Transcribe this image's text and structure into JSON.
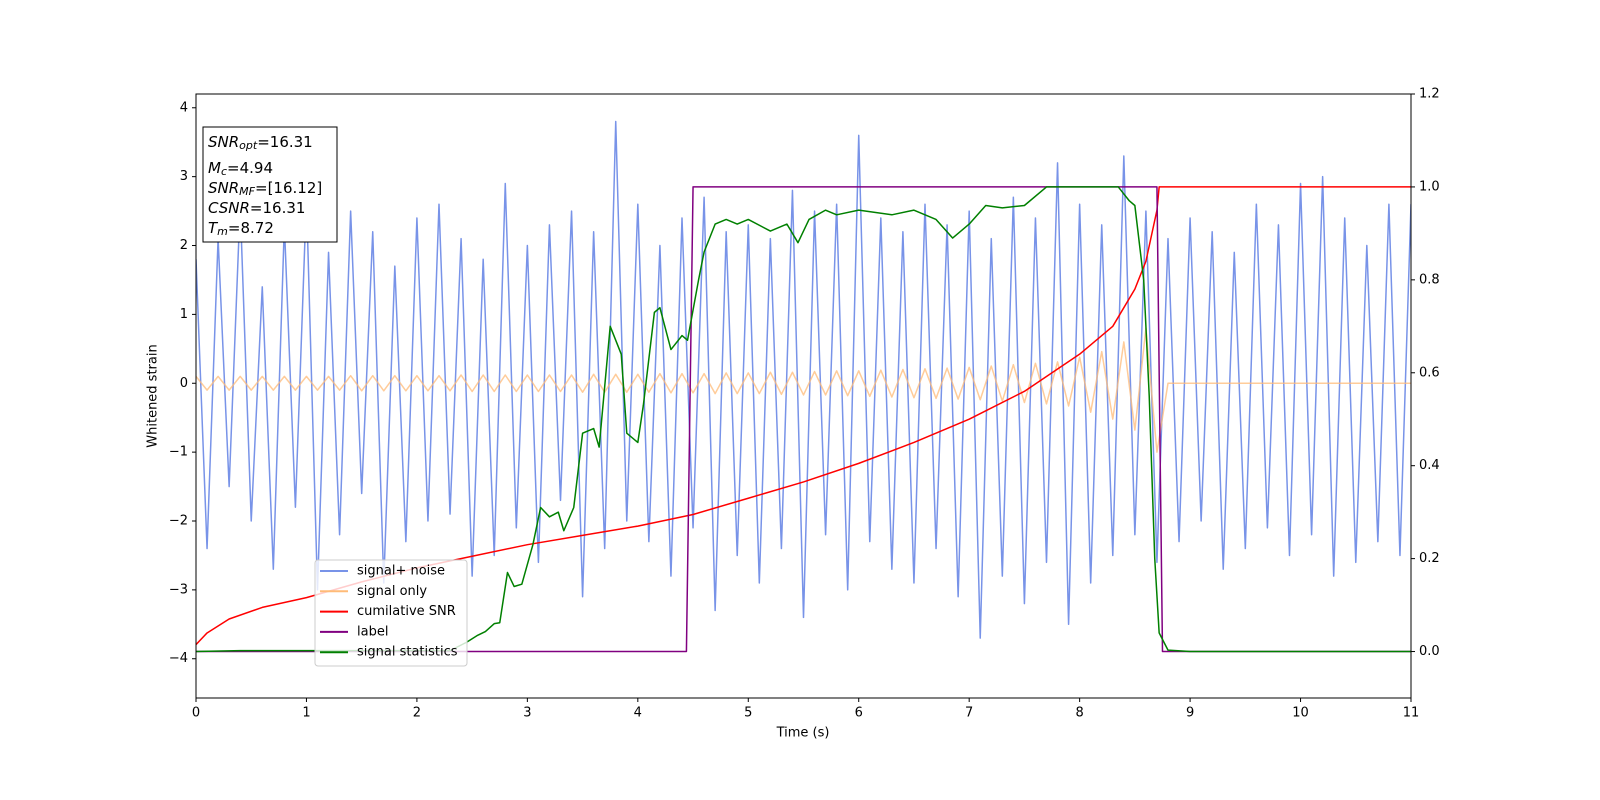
{
  "chart_data": {
    "type": "line",
    "xlabel": "Time (s)",
    "ylabel": "Whitened strain",
    "xlim": [
      0,
      11
    ],
    "xticks": [
      0,
      1,
      2,
      3,
      4,
      5,
      6,
      7,
      8,
      9,
      10,
      11
    ],
    "ylim": [
      -4.57,
      4.2
    ],
    "yticks": [
      {
        "value": -4,
        "label": "−4"
      },
      {
        "value": -3,
        "label": "−3"
      },
      {
        "value": -2,
        "label": "−2"
      },
      {
        "value": -1,
        "label": "−1"
      },
      0,
      1,
      2,
      3,
      4
    ],
    "y2lim": [
      -0.1,
      1.2
    ],
    "y2ticks": [
      {
        "value": 0,
        "label": "0.0"
      },
      0.2,
      0.4,
      0.6,
      0.8,
      {
        "value": 1,
        "label": "1.0"
      },
      1.2
    ],
    "legend": "lower left",
    "annotations": [
      {
        "text": "SNR",
        "sub": "opt",
        "suffix": "=16.31"
      },
      {
        "text": "M",
        "sub": "c",
        "suffix": "=4.94"
      },
      {
        "text": "SNR",
        "sub": "MF",
        "suffix": "=[16.12]"
      },
      {
        "text": "CSNR",
        "suffix": "=16.31"
      },
      {
        "text": "T",
        "sub": "m",
        "suffix": "=8.72"
      }
    ],
    "x": [
      0,
      0.1,
      0.2,
      0.3,
      0.4,
      0.5,
      0.6,
      0.7,
      0.8,
      0.9,
      1,
      1.1,
      1.2,
      1.3,
      1.4,
      1.5,
      1.6,
      1.7,
      1.8,
      1.9,
      2,
      2.1,
      2.2,
      2.3,
      2.4,
      2.5,
      2.6,
      2.7,
      2.8,
      2.9,
      3,
      3.1,
      3.2,
      3.3,
      3.4,
      3.5,
      3.6,
      3.7,
      3.8,
      3.9,
      4,
      4.1,
      4.2,
      4.3,
      4.4,
      4.5,
      4.6,
      4.7,
      4.8,
      4.9,
      5,
      5.1,
      5.2,
      5.3,
      5.4,
      5.5,
      5.6,
      5.7,
      5.8,
      5.9,
      6,
      6.1,
      6.2,
      6.3,
      6.4,
      6.5,
      6.6,
      6.7,
      6.8,
      6.9,
      7,
      7.1,
      7.2,
      7.3,
      7.4,
      7.5,
      7.6,
      7.7,
      7.8,
      7.9,
      8,
      8.1,
      8.2,
      8.3,
      8.4,
      8.5,
      8.6,
      8.7,
      8.8,
      8.9,
      9,
      9.1,
      9.2,
      9.3,
      9.4,
      9.5,
      9.6,
      9.7,
      9.8,
      9.9,
      10,
      10.1,
      10.2,
      10.3,
      10.4,
      10.5,
      10.6,
      10.7,
      10.8,
      10.9,
      11
    ],
    "series": [
      {
        "name": "signal+ noise",
        "color": "#7893e8",
        "values": [
          1.8,
          -2.4,
          2.1,
          -1.5,
          2.6,
          -2.0,
          1.4,
          -2.7,
          2.3,
          -1.8,
          2.7,
          -3.0,
          1.9,
          -2.2,
          2.5,
          -1.6,
          2.2,
          -2.9,
          1.7,
          -2.3,
          2.4,
          -2.0,
          2.6,
          -1.9,
          2.1,
          -2.8,
          1.8,
          -2.5,
          2.9,
          -2.1,
          2.0,
          -2.6,
          2.3,
          -1.7,
          2.5,
          -3.1,
          2.2,
          -2.4,
          3.8,
          -2.0,
          2.6,
          -2.3,
          2.0,
          -2.8,
          2.4,
          -2.1,
          2.7,
          -3.3,
          2.2,
          -2.5,
          2.3,
          -2.9,
          2.1,
          -2.4,
          2.8,
          -3.4,
          2.5,
          -2.2,
          2.6,
          -3.0,
          3.6,
          -2.3,
          2.4,
          -2.7,
          2.2,
          -2.9,
          2.6,
          -2.4,
          2.3,
          -3.1,
          2.5,
          -3.7,
          2.1,
          -2.8,
          2.7,
          -3.2,
          2.4,
          -2.6,
          3.2,
          -3.5,
          2.6,
          -2.9,
          2.3,
          -2.5,
          3.3,
          -2.2,
          2.5,
          -2.6,
          2.1,
          -2.3,
          2.4,
          -2.0,
          2.2,
          -2.7,
          1.9,
          -2.4,
          2.6,
          -2.1,
          2.3,
          -2.5,
          2.9,
          -2.2,
          3.0,
          -2.8,
          2.4,
          -2.6,
          2.0,
          -2.3,
          2.6,
          -2.5,
          2.6
        ]
      },
      {
        "name": "signal only",
        "color": "#ffbb78",
        "values": [
          0.1,
          -0.1,
          0.1,
          -0.1,
          0.1,
          -0.1,
          0.1,
          -0.1,
          0.1,
          -0.1,
          0.1,
          -0.1,
          0.1,
          -0.1,
          0.11,
          -0.11,
          0.11,
          -0.11,
          0.11,
          -0.11,
          0.11,
          -0.11,
          0.11,
          -0.11,
          0.12,
          -0.12,
          0.12,
          -0.12,
          0.12,
          -0.12,
          0.12,
          -0.12,
          0.12,
          -0.12,
          0.12,
          -0.13,
          0.13,
          -0.13,
          0.13,
          -0.13,
          0.13,
          -0.13,
          0.14,
          -0.14,
          0.14,
          -0.14,
          0.14,
          -0.15,
          0.15,
          -0.15,
          0.15,
          -0.15,
          0.16,
          -0.16,
          0.16,
          -0.17,
          0.17,
          -0.17,
          0.18,
          -0.18,
          0.18,
          -0.19,
          0.19,
          -0.2,
          0.2,
          -0.21,
          0.21,
          -0.22,
          0.22,
          -0.23,
          0.23,
          -0.24,
          0.25,
          -0.26,
          0.27,
          -0.28,
          0.29,
          -0.3,
          0.31,
          -0.33,
          0.38,
          -0.42,
          0.46,
          -0.52,
          0.6,
          -0.68,
          0.8,
          -1.0,
          0,
          0,
          0,
          0,
          0,
          0,
          0,
          0,
          0,
          0,
          0,
          0,
          0,
          0,
          0,
          0,
          0,
          0,
          0,
          0,
          0,
          0,
          0
        ]
      },
      {
        "name": "cumilative SNR",
        "color": "#ff0000",
        "axis": "y2",
        "x": [
          0,
          0.1,
          0.3,
          0.6,
          1,
          1.5,
          2,
          2.5,
          3,
          3.5,
          4,
          4.5,
          5,
          5.5,
          6,
          6.5,
          7,
          7.5,
          8,
          8.3,
          8.5,
          8.6,
          8.7,
          8.72,
          11
        ],
        "values": [
          0.015,
          0.04,
          0.07,
          0.095,
          0.116,
          0.15,
          0.18,
          0.205,
          0.23,
          0.25,
          0.27,
          0.295,
          0.33,
          0.365,
          0.405,
          0.45,
          0.5,
          0.56,
          0.64,
          0.7,
          0.78,
          0.84,
          0.95,
          1.0,
          1.0
        ]
      },
      {
        "name": "label",
        "color": "#800080",
        "axis": "y2",
        "x": [
          0,
          4.44,
          4.5,
          8.7,
          8.75,
          11
        ],
        "values": [
          0,
          0,
          1,
          1,
          0,
          0
        ]
      },
      {
        "name": "signal statistics",
        "color": "#008000",
        "axis": "y2",
        "x": [
          0,
          0.4,
          2.3,
          2.45,
          2.55,
          2.62,
          2.7,
          2.75,
          2.82,
          2.88,
          2.95,
          3.05,
          3.12,
          3.2,
          3.28,
          3.33,
          3.42,
          3.5,
          3.6,
          3.65,
          3.75,
          3.85,
          3.9,
          4.0,
          4.05,
          4.15,
          4.2,
          4.3,
          4.4,
          4.45,
          4.55,
          4.6,
          4.7,
          4.8,
          4.9,
          5.0,
          5.2,
          5.35,
          5.45,
          5.55,
          5.7,
          5.8,
          6.0,
          6.3,
          6.5,
          6.7,
          6.85,
          7.0,
          7.15,
          7.3,
          7.5,
          7.7,
          8.0,
          8.35,
          8.45,
          8.5,
          8.58,
          8.63,
          8.68,
          8.72,
          8.8,
          9,
          11
        ],
        "values": [
          0,
          0.002,
          0.002,
          0.02,
          0.035,
          0.043,
          0.06,
          0.062,
          0.17,
          0.14,
          0.145,
          0.23,
          0.31,
          0.29,
          0.3,
          0.26,
          0.31,
          0.47,
          0.48,
          0.44,
          0.7,
          0.64,
          0.47,
          0.45,
          0.53,
          0.73,
          0.74,
          0.65,
          0.68,
          0.67,
          0.8,
          0.86,
          0.92,
          0.93,
          0.92,
          0.93,
          0.905,
          0.92,
          0.88,
          0.93,
          0.95,
          0.94,
          0.95,
          0.94,
          0.95,
          0.93,
          0.89,
          0.92,
          0.96,
          0.955,
          0.96,
          1.0,
          1.0,
          1.0,
          0.97,
          0.96,
          0.8,
          0.55,
          0.2,
          0.04,
          0.003,
          0,
          0
        ]
      }
    ]
  }
}
